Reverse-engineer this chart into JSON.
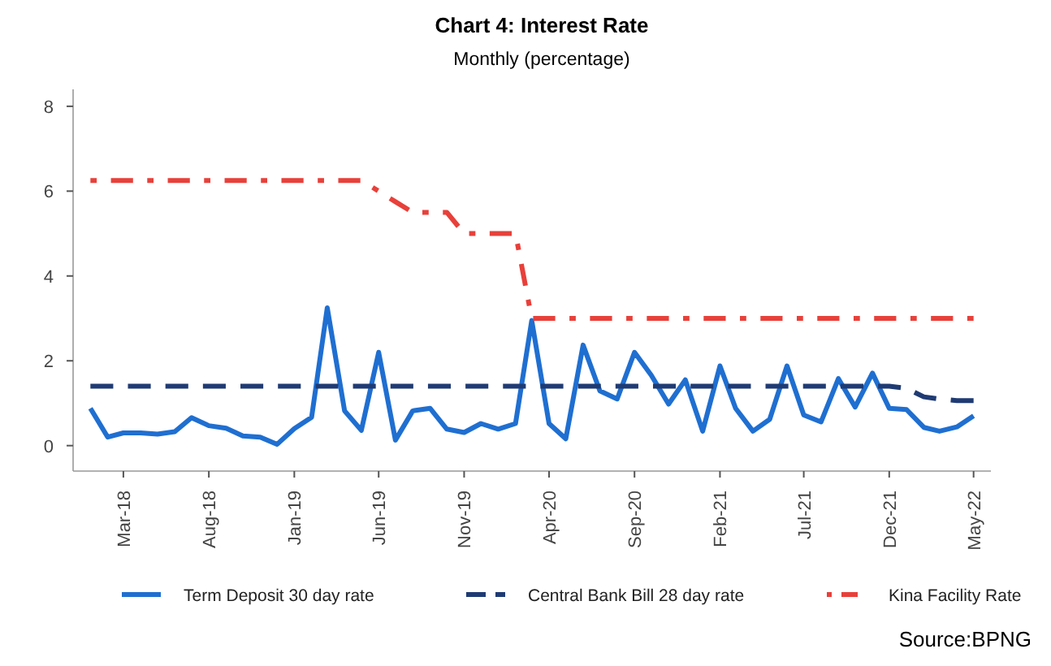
{
  "chart_data": {
    "type": "line",
    "title": "Chart 4: Interest Rate",
    "subtitle": "Monthly (percentage)",
    "x": [
      "2018-01",
      "2018-02",
      "2018-03",
      "2018-04",
      "2018-05",
      "2018-06",
      "2018-07",
      "2018-08",
      "2018-09",
      "2018-10",
      "2018-11",
      "2018-12",
      "2019-01",
      "2019-02",
      "2019-03",
      "2019-04",
      "2019-05",
      "2019-06",
      "2019-07",
      "2019-08",
      "2019-09",
      "2019-10",
      "2019-11",
      "2019-12",
      "2020-01",
      "2020-02",
      "2020-03",
      "2020-04",
      "2020-05",
      "2020-06",
      "2020-07",
      "2020-08",
      "2020-09",
      "2020-10",
      "2020-11",
      "2020-12",
      "2021-01",
      "2021-02",
      "2021-03",
      "2021-04",
      "2021-05",
      "2021-06",
      "2021-07",
      "2021-08",
      "2021-09",
      "2021-10",
      "2021-11",
      "2021-12",
      "2022-01",
      "2022-02",
      "2022-03",
      "2022-04",
      "2022-05"
    ],
    "series": [
      {
        "name": "Term Deposit 30 day rate",
        "color": "#1f6fd1",
        "line_style": "solid",
        "values": [
          0.88,
          0.2,
          0.3,
          0.3,
          0.27,
          0.33,
          0.66,
          0.47,
          0.41,
          0.23,
          0.2,
          0.03,
          0.4,
          0.67,
          3.25,
          0.82,
          0.36,
          2.2,
          0.13,
          0.82,
          0.88,
          0.39,
          0.31,
          0.52,
          0.39,
          0.52,
          2.95,
          0.52,
          0.16,
          2.37,
          1.29,
          1.1,
          2.2,
          1.66,
          0.98,
          1.55,
          0.34,
          1.88,
          0.88,
          0.34,
          0.62,
          1.88,
          0.72,
          0.56,
          1.58,
          0.91,
          1.71,
          0.88,
          0.85,
          0.43,
          0.34,
          0.44,
          0.7
        ]
      },
      {
        "name": "Central Bank Bill 28 day rate",
        "color": "#1f3b73",
        "line_style": "dashed",
        "values": [
          1.4,
          1.4,
          1.4,
          1.4,
          1.4,
          1.4,
          1.4,
          1.4,
          1.4,
          1.4,
          1.4,
          1.4,
          1.4,
          1.4,
          1.4,
          1.4,
          1.4,
          1.4,
          1.4,
          1.4,
          1.4,
          1.4,
          1.4,
          1.4,
          1.4,
          1.4,
          1.4,
          1.4,
          1.4,
          1.4,
          1.4,
          1.4,
          1.4,
          1.4,
          1.4,
          1.4,
          1.4,
          1.4,
          1.4,
          1.4,
          1.4,
          1.4,
          1.4,
          1.4,
          1.4,
          1.4,
          1.4,
          1.4,
          1.35,
          1.15,
          1.1,
          1.06,
          1.06
        ]
      },
      {
        "name": "Kina Facility Rate",
        "color": "#e8403a",
        "line_style": "dotted",
        "values": [
          6.25,
          6.25,
          6.25,
          6.25,
          6.25,
          6.25,
          6.25,
          6.25,
          6.25,
          6.25,
          6.25,
          6.25,
          6.25,
          6.25,
          6.25,
          6.25,
          6.25,
          6.0,
          5.75,
          5.5,
          5.5,
          5.5,
          5.0,
          5.0,
          5.0,
          5.0,
          3.0,
          3.0,
          3.0,
          3.0,
          3.0,
          3.0,
          3.0,
          3.0,
          3.0,
          3.0,
          3.0,
          3.0,
          3.0,
          3.0,
          3.0,
          3.0,
          3.0,
          3.0,
          3.0,
          3.0,
          3.0,
          3.0,
          3.0,
          3.0,
          3.0,
          3.0,
          3.0
        ]
      }
    ],
    "xticks": [
      {
        "value": "2018-03",
        "label": "Mar-18"
      },
      {
        "value": "2018-08",
        "label": "Aug-18"
      },
      {
        "value": "2019-01",
        "label": "Jan-19"
      },
      {
        "value": "2019-06",
        "label": "Jun-19"
      },
      {
        "value": "2019-11",
        "label": "Nov-19"
      },
      {
        "value": "2020-04",
        "label": "Apr-20"
      },
      {
        "value": "2020-09",
        "label": "Sep-20"
      },
      {
        "value": "2021-02",
        "label": "Feb-21"
      },
      {
        "value": "2021-07",
        "label": "Jul-21"
      },
      {
        "value": "2021-12",
        "label": "Dec-21"
      },
      {
        "value": "2022-05",
        "label": "May-22"
      }
    ],
    "xlim": [
      "2017-12",
      "2022-06"
    ],
    "ylim": [
      -0.6,
      8.4
    ],
    "yticks": [
      0,
      2,
      4,
      6,
      8
    ],
    "grid": false,
    "legend": "bottom",
    "marker": "none",
    "annotations": [
      "Source:BPNG"
    ]
  }
}
